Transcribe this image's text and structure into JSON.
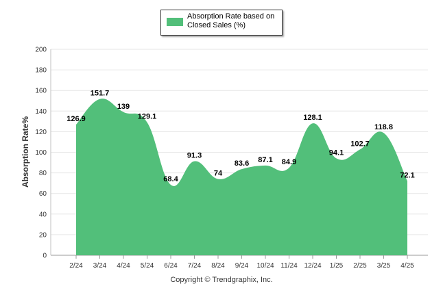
{
  "chart_data": {
    "type": "area",
    "title": "",
    "xlabel": "",
    "ylabel": "Absorption Rate%",
    "ylim": [
      0,
      200
    ],
    "yticks": [
      0,
      20,
      40,
      60,
      80,
      100,
      120,
      140,
      160,
      180,
      200
    ],
    "grid": true,
    "legend_position": "top-center",
    "categories": [
      "2/24",
      "3/24",
      "4/24",
      "5/24",
      "6/24",
      "7/24",
      "8/24",
      "9/24",
      "10/24",
      "11/24",
      "12/24",
      "1/25",
      "2/25",
      "3/25",
      "4/25"
    ],
    "series": [
      {
        "name": "Absorption Rate based on Closed Sales (%)",
        "color": "#52bf7a",
        "values": [
          126.9,
          151.7,
          139,
          129.1,
          68.4,
          91.3,
          74,
          83.6,
          87.1,
          84.9,
          128.1,
          94.1,
          102.7,
          118.8,
          72.1
        ]
      }
    ]
  },
  "footer": {
    "copyright": "Copyright © Trendgraphix, Inc."
  }
}
